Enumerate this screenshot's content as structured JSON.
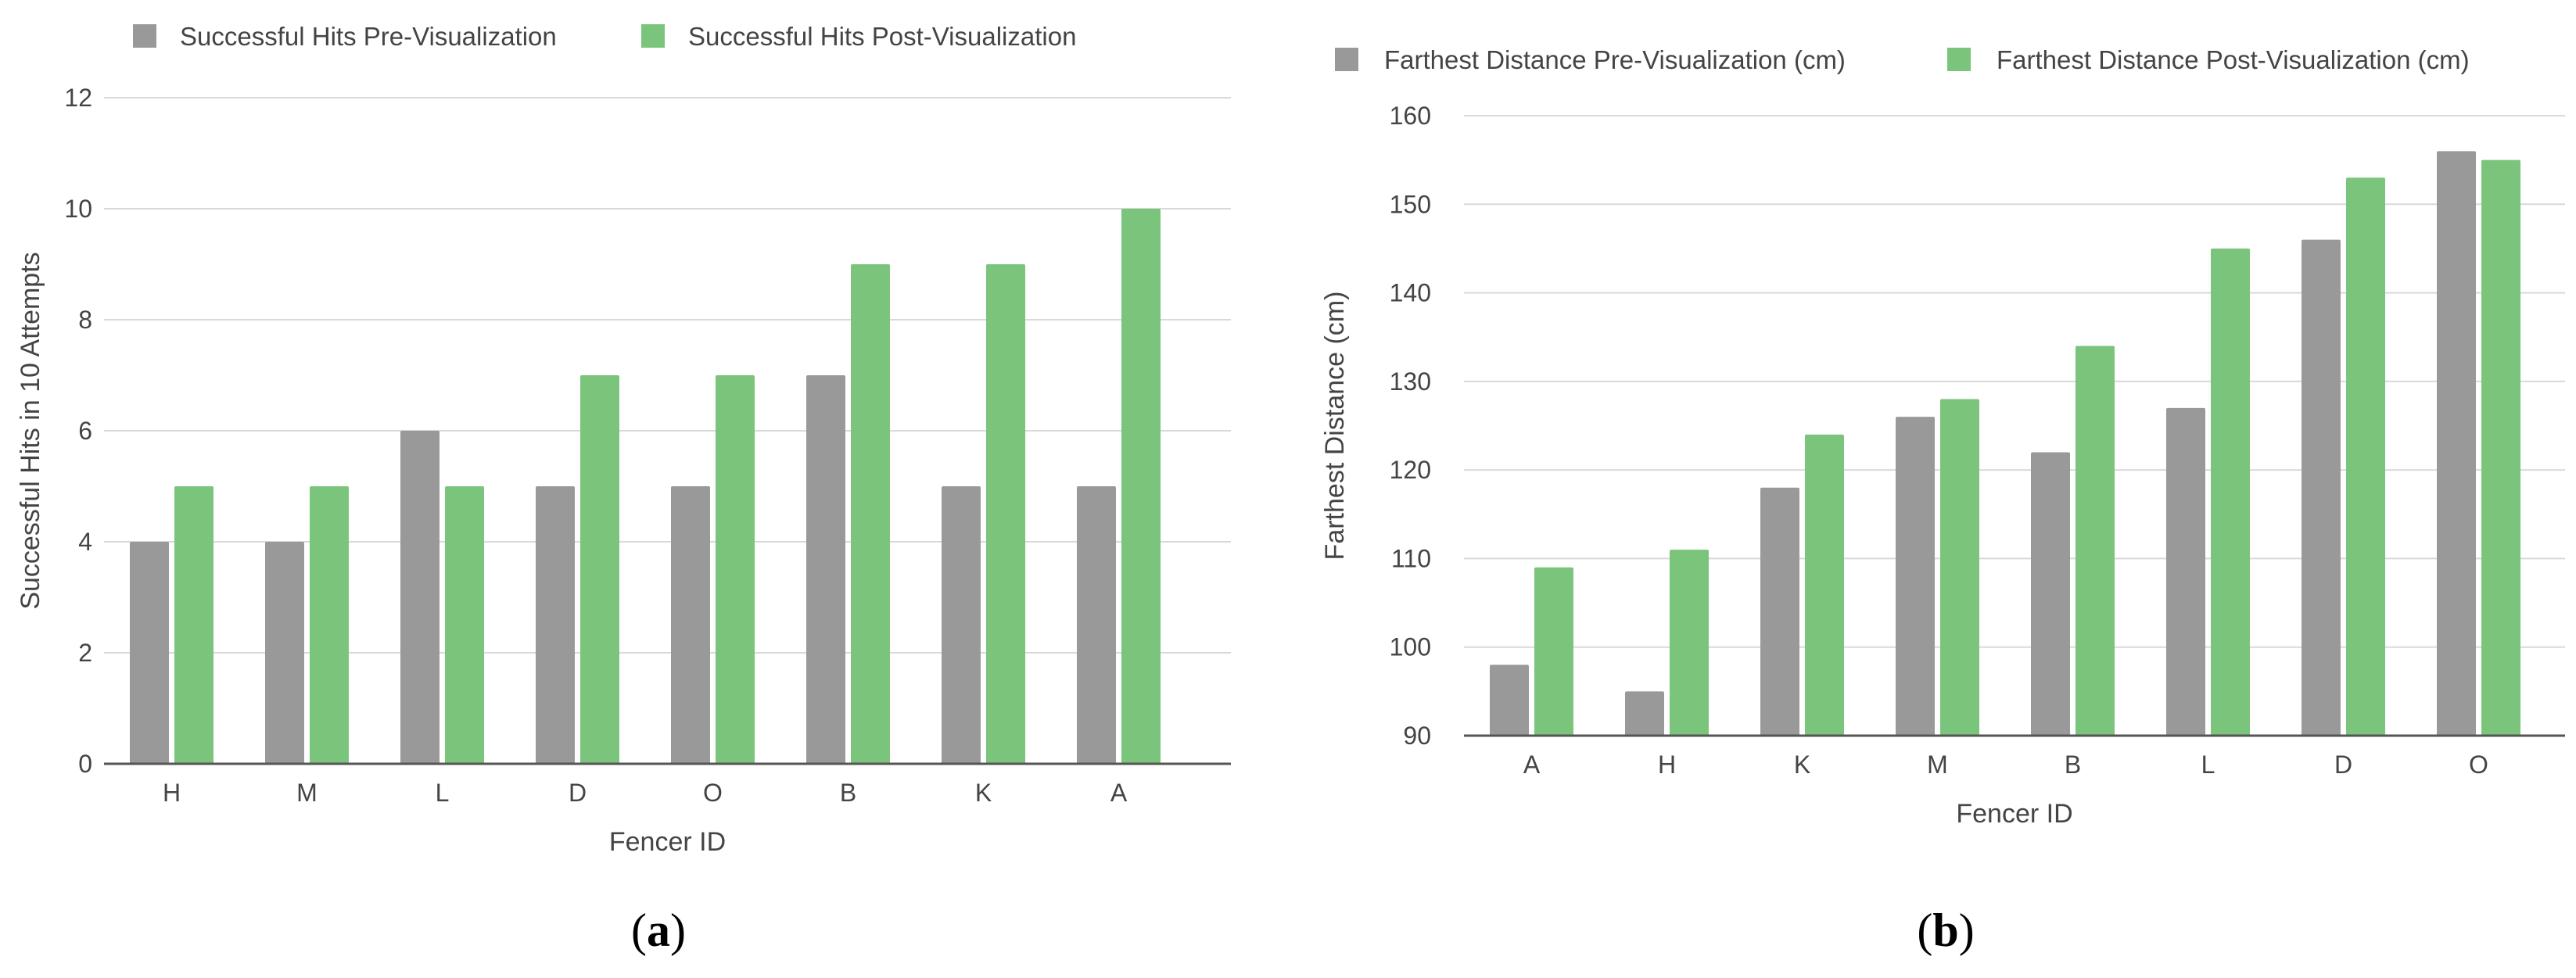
{
  "colors": {
    "pre": "#999999",
    "post": "#7bc47b",
    "grid": "#d9d9d9",
    "axis": "#555555"
  },
  "chart_data": [
    {
      "type": "bar",
      "caption_parts": [
        "(",
        "a",
        ")"
      ],
      "categories": [
        "H",
        "M",
        "L",
        "D",
        "O",
        "B",
        "K",
        "A"
      ],
      "series": [
        {
          "name": "Successful Hits Pre-Visualization",
          "values": [
            4,
            4,
            6,
            5,
            5,
            7,
            5,
            5
          ]
        },
        {
          "name": "Successful Hits Post-Visualization",
          "values": [
            5,
            5,
            5,
            7,
            7,
            9,
            9,
            10
          ]
        }
      ],
      "xlabel": "Fencer ID",
      "ylabel": "Successful Hits in 10 Attempts",
      "ylim": [
        0,
        12
      ],
      "yticks": [
        0,
        2,
        4,
        6,
        8,
        10,
        12
      ],
      "grid": true,
      "legend": "top-left"
    },
    {
      "type": "bar",
      "caption_parts": [
        "(",
        "b",
        ")"
      ],
      "categories": [
        "A",
        "H",
        "K",
        "M",
        "B",
        "L",
        "D",
        "O"
      ],
      "series": [
        {
          "name": "Farthest Distance Pre-Visualization (cm)",
          "values": [
            98,
            95,
            118,
            126,
            122,
            127,
            146,
            156
          ]
        },
        {
          "name": "Farthest Distance Post-Visualization (cm)",
          "values": [
            109,
            111,
            124,
            128,
            134,
            145,
            153,
            155
          ]
        }
      ],
      "xlabel": "Fencer ID",
      "ylabel": "Farthest Distance (cm)",
      "ylim": [
        90,
        160
      ],
      "yticks": [
        90,
        100,
        110,
        120,
        130,
        140,
        150,
        160
      ],
      "grid": true,
      "legend": "top-left"
    }
  ]
}
